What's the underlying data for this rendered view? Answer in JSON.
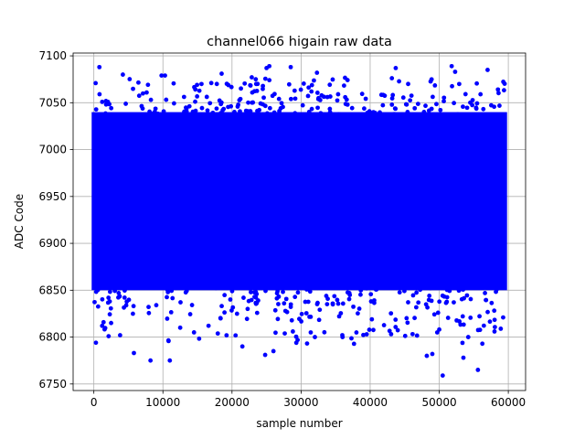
{
  "chart_data": {
    "type": "scatter",
    "title": "channel066 higain raw data",
    "xlabel": "sample number",
    "ylabel": "ADC Code",
    "xlim": [
      -3000,
      62500
    ],
    "ylim": [
      6743,
      7103
    ],
    "xticks": [
      0,
      10000,
      20000,
      30000,
      40000,
      50000,
      60000
    ],
    "yticks": [
      6750,
      6800,
      6850,
      6900,
      6950,
      7000,
      7050,
      7100
    ],
    "grid": true,
    "marker_color": "#0000ff",
    "series": [
      {
        "n_samples_approx": 60000,
        "x_range": [
          0,
          59500
        ],
        "dense_band": [
          6850,
          7040
        ],
        "center": 6945,
        "outliers": [
          {
            "x": 300,
            "y": 6794
          },
          {
            "x": 800,
            "y": 7088
          },
          {
            "x": 1200,
            "y": 6812
          },
          {
            "x": 2500,
            "y": 6815
          },
          {
            "x": 3800,
            "y": 6802
          },
          {
            "x": 4200,
            "y": 7080
          },
          {
            "x": 5800,
            "y": 6783
          },
          {
            "x": 8200,
            "y": 6775
          },
          {
            "x": 9800,
            "y": 7079
          },
          {
            "x": 10300,
            "y": 7079
          },
          {
            "x": 11000,
            "y": 6775
          },
          {
            "x": 12500,
            "y": 6810
          },
          {
            "x": 14500,
            "y": 6805
          },
          {
            "x": 17000,
            "y": 7071
          },
          {
            "x": 17800,
            "y": 7070
          },
          {
            "x": 18500,
            "y": 7081
          },
          {
            "x": 21500,
            "y": 6790
          },
          {
            "x": 23500,
            "y": 7070
          },
          {
            "x": 24800,
            "y": 6781
          },
          {
            "x": 25000,
            "y": 7087
          },
          {
            "x": 25400,
            "y": 7089
          },
          {
            "x": 26000,
            "y": 6785
          },
          {
            "x": 28500,
            "y": 7088
          },
          {
            "x": 29500,
            "y": 6797
          },
          {
            "x": 31500,
            "y": 7062
          },
          {
            "x": 32000,
            "y": 6800
          },
          {
            "x": 32300,
            "y": 7082
          },
          {
            "x": 36000,
            "y": 6800
          },
          {
            "x": 39500,
            "y": 6803
          },
          {
            "x": 43700,
            "y": 7087
          },
          {
            "x": 45500,
            "y": 7070
          },
          {
            "x": 48200,
            "y": 6780
          },
          {
            "x": 49000,
            "y": 6782
          },
          {
            "x": 50500,
            "y": 6759
          },
          {
            "x": 51800,
            "y": 7089
          },
          {
            "x": 52300,
            "y": 7083
          },
          {
            "x": 53500,
            "y": 6778
          },
          {
            "x": 54200,
            "y": 6800
          },
          {
            "x": 55600,
            "y": 6765
          },
          {
            "x": 57000,
            "y": 7085
          },
          {
            "x": 58000,
            "y": 6806
          }
        ]
      }
    ]
  }
}
